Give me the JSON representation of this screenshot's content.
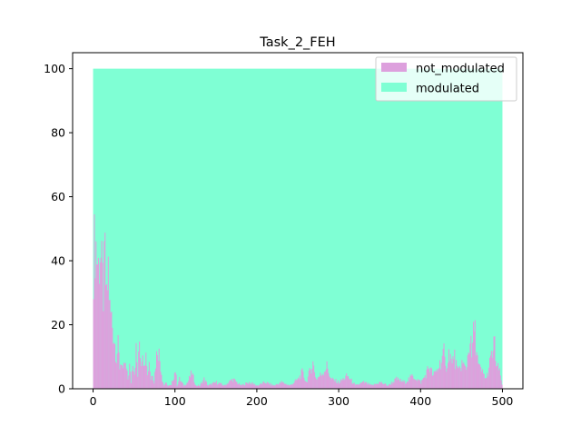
{
  "chart_data": {
    "type": "bar",
    "stacked": true,
    "title": "Task_2_FEH",
    "xlabel": "",
    "ylabel": "",
    "xlim": [
      -25,
      525
    ],
    "ylim": [
      0,
      105
    ],
    "x_ticks": [
      0,
      100,
      200,
      300,
      400,
      500
    ],
    "y_ticks": [
      0,
      20,
      40,
      60,
      80,
      100
    ],
    "legend": {
      "placement": "top-right"
    },
    "n_bins": 500,
    "total_per_bin": 100,
    "series": [
      {
        "name": "not_modulated",
        "color": "#dda0dd",
        "profile": [
          [
            0,
            40
          ],
          [
            2,
            47
          ],
          [
            4,
            42
          ],
          [
            6,
            38
          ],
          [
            8,
            44
          ],
          [
            10,
            36
          ],
          [
            12,
            30
          ],
          [
            14,
            41
          ],
          [
            16,
            26
          ],
          [
            18,
            38
          ],
          [
            20,
            24
          ],
          [
            22,
            22
          ],
          [
            24,
            18
          ],
          [
            26,
            14
          ],
          [
            28,
            10
          ],
          [
            30,
            13
          ],
          [
            32,
            7
          ],
          [
            34,
            9
          ],
          [
            36,
            5
          ],
          [
            38,
            8
          ],
          [
            40,
            6
          ],
          [
            42,
            3
          ],
          [
            44,
            7
          ],
          [
            46,
            2
          ],
          [
            48,
            9
          ],
          [
            50,
            5
          ],
          [
            52,
            12
          ],
          [
            54,
            4
          ],
          [
            56,
            15
          ],
          [
            58,
            8
          ],
          [
            60,
            13
          ],
          [
            62,
            6
          ],
          [
            64,
            15
          ],
          [
            66,
            4
          ],
          [
            68,
            9
          ],
          [
            70,
            3
          ],
          [
            72,
            5
          ],
          [
            74,
            2
          ],
          [
            76,
            8
          ],
          [
            78,
            13
          ],
          [
            80,
            11
          ],
          [
            82,
            7
          ],
          [
            84,
            3
          ],
          [
            86,
            1
          ],
          [
            88,
            2
          ],
          [
            90,
            1
          ],
          [
            95,
            1
          ],
          [
            100,
            6
          ],
          [
            102,
            1
          ],
          [
            105,
            3
          ],
          [
            110,
            1
          ],
          [
            115,
            2
          ],
          [
            120,
            5
          ],
          [
            125,
            1
          ],
          [
            130,
            1
          ],
          [
            135,
            3
          ],
          [
            140,
            1
          ],
          [
            150,
            2
          ],
          [
            160,
            1
          ],
          [
            170,
            3
          ],
          [
            180,
            1
          ],
          [
            190,
            2
          ],
          [
            200,
            1
          ],
          [
            210,
            2
          ],
          [
            220,
            1
          ],
          [
            230,
            2
          ],
          [
            240,
            1
          ],
          [
            250,
            3
          ],
          [
            255,
            5
          ],
          [
            260,
            2
          ],
          [
            265,
            6
          ],
          [
            268,
            8
          ],
          [
            272,
            3
          ],
          [
            280,
            5
          ],
          [
            285,
            7
          ],
          [
            290,
            3
          ],
          [
            300,
            2
          ],
          [
            310,
            4
          ],
          [
            320,
            1
          ],
          [
            330,
            2
          ],
          [
            340,
            1
          ],
          [
            350,
            2
          ],
          [
            360,
            1
          ],
          [
            370,
            3
          ],
          [
            380,
            2
          ],
          [
            390,
            4
          ],
          [
            400,
            2
          ],
          [
            405,
            4
          ],
          [
            410,
            7
          ],
          [
            415,
            4
          ],
          [
            420,
            6
          ],
          [
            425,
            9
          ],
          [
            428,
            11
          ],
          [
            430,
            6
          ],
          [
            435,
            12
          ],
          [
            438,
            7
          ],
          [
            440,
            11
          ],
          [
            445,
            5
          ],
          [
            450,
            8
          ],
          [
            455,
            6
          ],
          [
            460,
            16
          ],
          [
            462,
            10
          ],
          [
            465,
            20
          ],
          [
            468,
            12
          ],
          [
            470,
            7
          ],
          [
            475,
            5
          ],
          [
            480,
            3
          ],
          [
            485,
            9
          ],
          [
            490,
            14
          ],
          [
            492,
            7
          ],
          [
            495,
            6
          ],
          [
            498,
            3
          ],
          [
            499,
            1
          ]
        ]
      },
      {
        "name": "modulated",
        "color": "#7fffd4",
        "complement_of": "not_modulated"
      }
    ]
  }
}
